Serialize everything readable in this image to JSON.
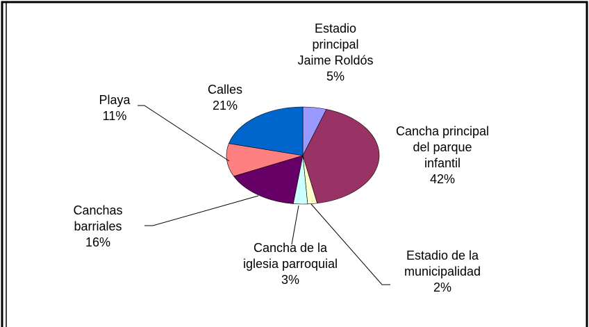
{
  "chart_data": {
    "type": "pie",
    "categories": [
      "Estadio principal Jaime Roldós",
      "Cancha principal del parque infantil",
      "Estadio de la municipalidad",
      "Cancha de la iglesia parroquial",
      "Canchas barriales",
      "Playa",
      "Calles"
    ],
    "values": [
      5,
      42,
      2,
      3,
      16,
      11,
      21
    ],
    "value_labels": [
      "5%",
      "42%",
      "2%",
      "3%",
      "16%",
      "11%",
      "21%"
    ],
    "colors": [
      "#9999ff",
      "#993366",
      "#ffffcc",
      "#ccffff",
      "#660066",
      "#ff8080",
      "#0066cc"
    ]
  }
}
